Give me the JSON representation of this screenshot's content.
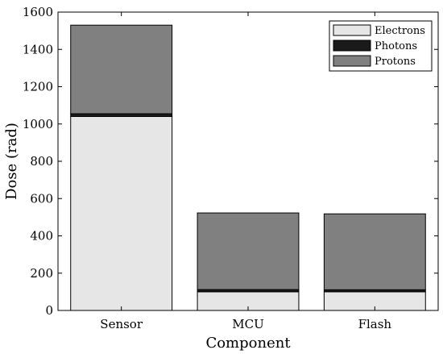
{
  "chart_data": {
    "type": "bar",
    "stacked": true,
    "categories": [
      "Sensor",
      "MCU",
      "Flash"
    ],
    "series": [
      {
        "name": "Electrons",
        "values": [
          1040,
          100,
          100
        ],
        "color": "#e6e6e6"
      },
      {
        "name": "Photons",
        "values": [
          15,
          12,
          11
        ],
        "color": "#1a1a1a"
      },
      {
        "name": "Protons",
        "values": [
          475,
          411,
          407
        ],
        "color": "#808080"
      }
    ],
    "xlabel": "Component",
    "ylabel": "Dose (rad)",
    "ylim": [
      0,
      1600
    ],
    "yticks": [
      "0",
      "200",
      "400",
      "600",
      "800",
      "1000",
      "1200",
      "1400",
      "1600"
    ],
    "grid": false,
    "legend_position": "top-right"
  }
}
